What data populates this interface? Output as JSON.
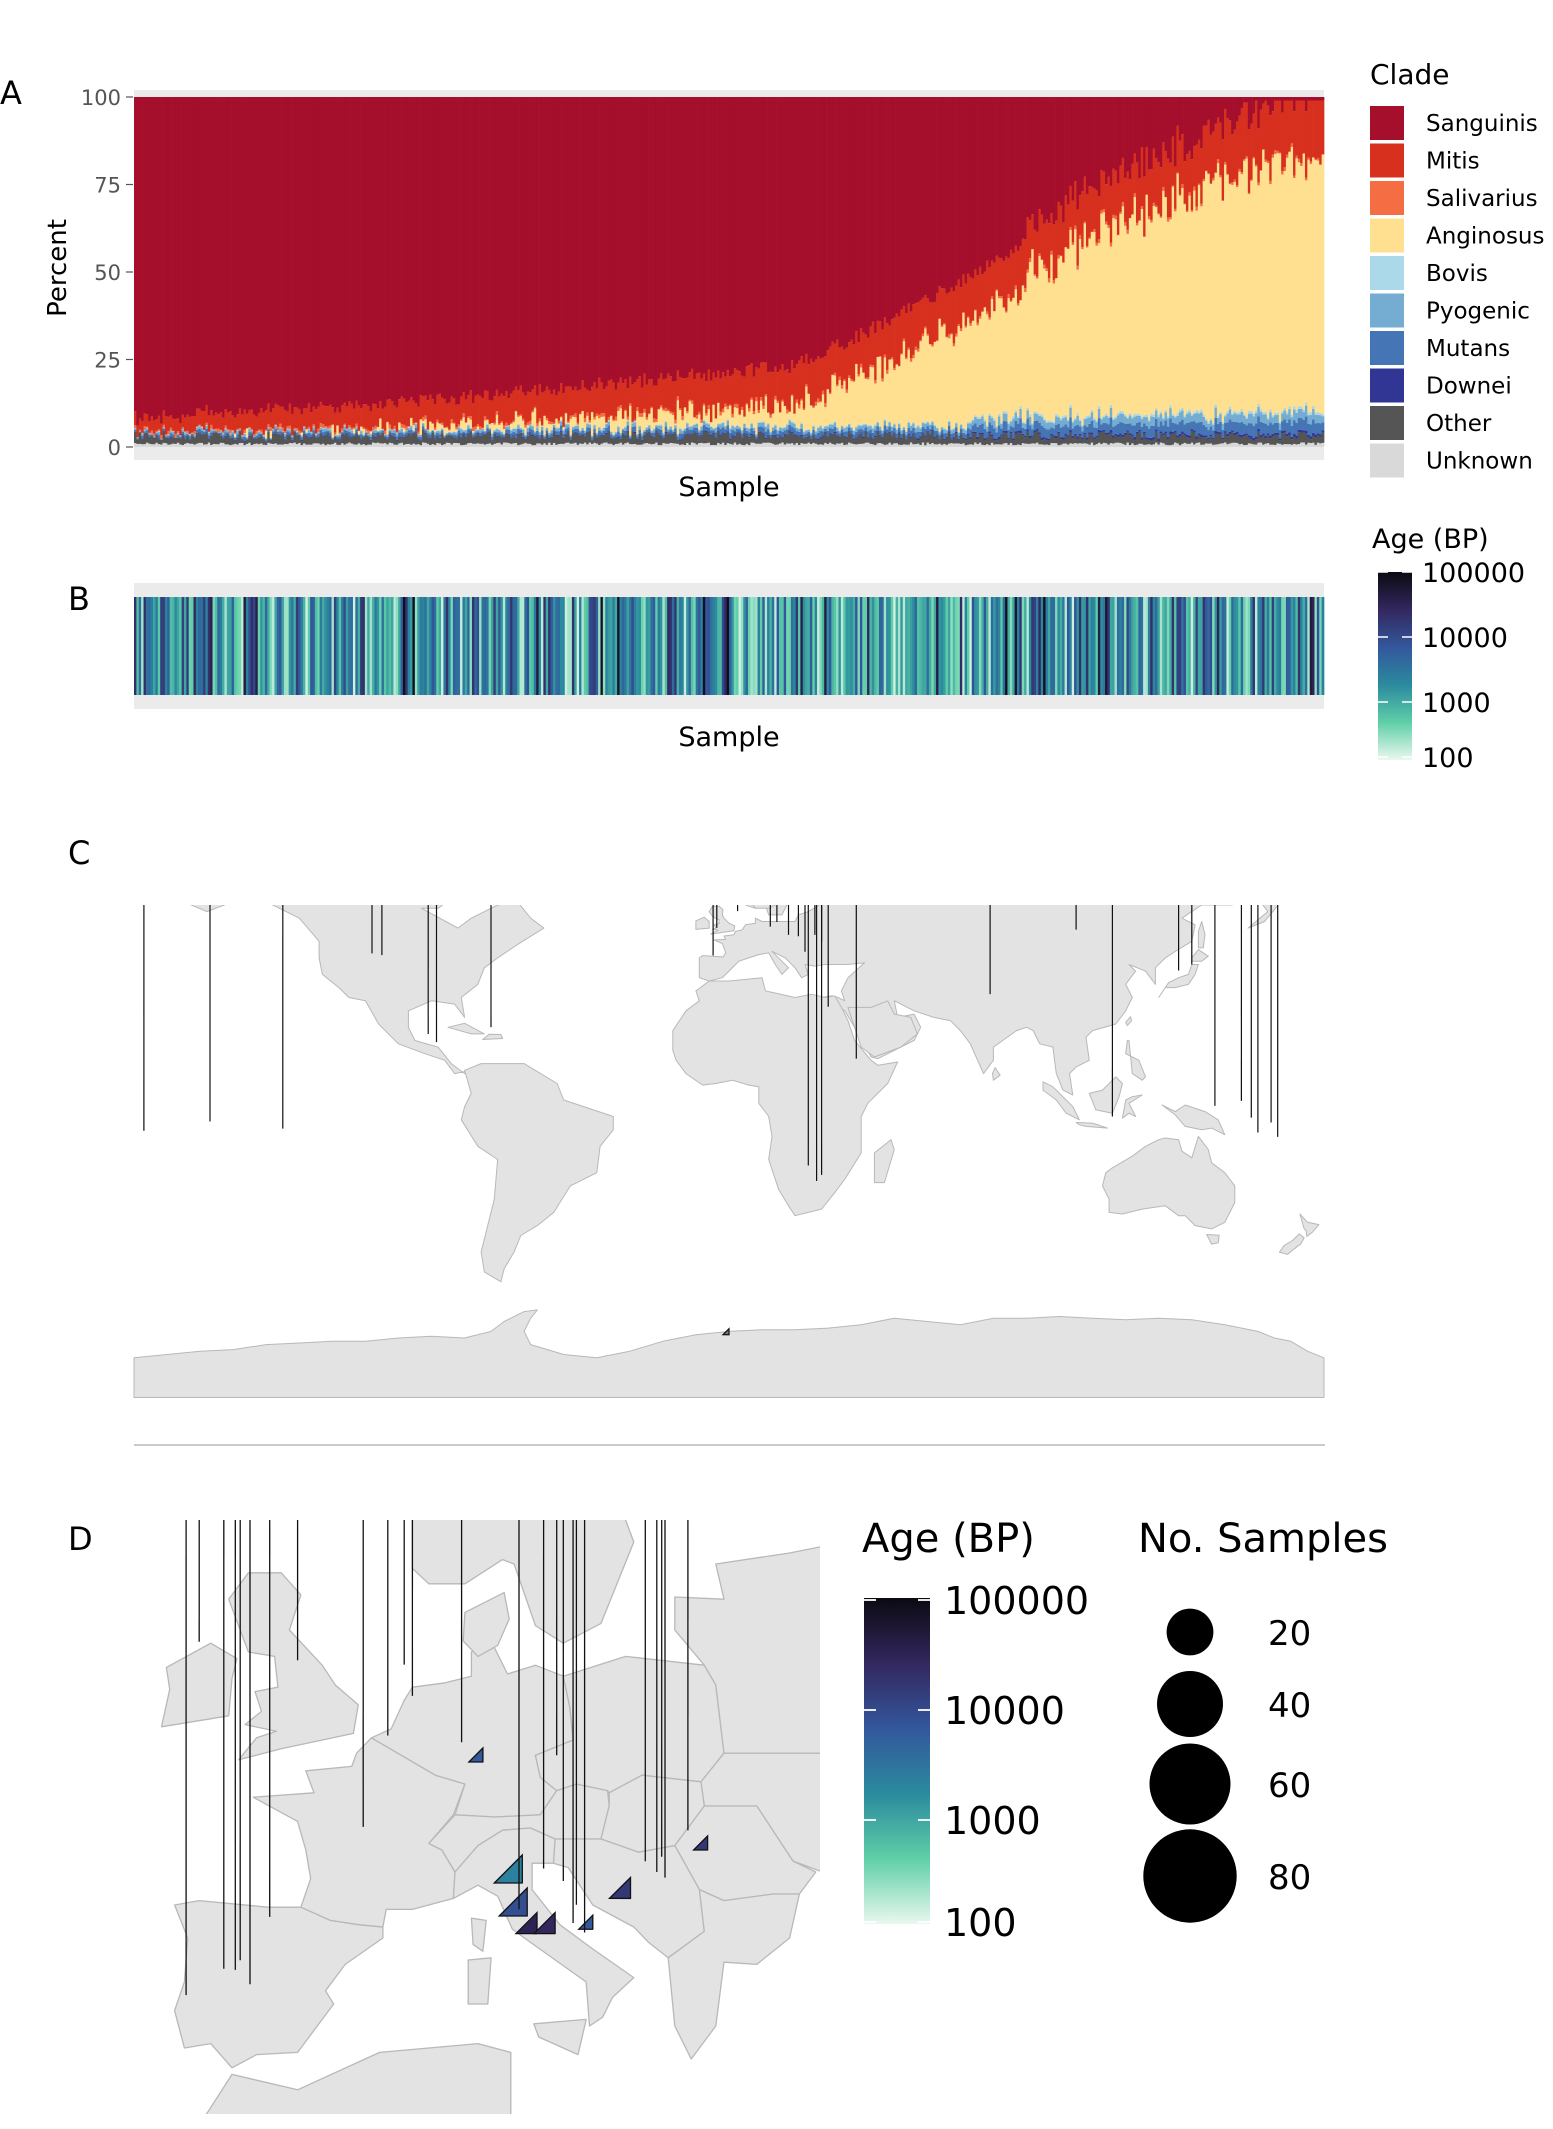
{
  "panel_labels": {
    "a": "A",
    "b": "B",
    "c": "C",
    "d": "D"
  },
  "colors": {
    "panel_bg": "#ebebeb",
    "land": "#e3e3e3",
    "land_border": "#b8b8b8",
    "clades": {
      "Sanguinis": "#a50f2c",
      "Mitis": "#d7301f",
      "Salivarius": "#f46d43",
      "Anginosus": "#fee090",
      "Bovis": "#abd9e9",
      "Pyogenic": "#74add1",
      "Mutans": "#4575b4",
      "Downei": "#313695",
      "Other": "#555555",
      "Unknown": "#d9d9d9"
    },
    "age_gradient": [
      "#e9f8ef",
      "#5fcfa7",
      "#2b8a9e",
      "#33579c",
      "#33275e",
      "#0b0a12"
    ]
  },
  "chart_data": [
    {
      "type": "bar",
      "panel": "A",
      "stacked": true,
      "sample_count": 500,
      "sorted_by": "Sanguinis",
      "xlabel": "Sample",
      "ylabel": "Percent",
      "ylim": [
        0,
        100
      ],
      "yticks": [
        "0",
        "25",
        "50",
        "75",
        "100"
      ],
      "legend": {
        "title": "Clade",
        "position": "right",
        "entries": [
          "Sanguinis",
          "Mitis",
          "Salivarius",
          "Anginosus",
          "Bovis",
          "Pyogenic",
          "Mutans",
          "Downei",
          "Other",
          "Unknown"
        ]
      },
      "series_approx_ranges": {
        "Sanguinis": [
          95,
          2
        ],
        "Mitis": [
          3,
          12
        ],
        "Anginosus": [
          0.5,
          70
        ],
        "Other": [
          1,
          3
        ]
      }
    },
    {
      "type": "heatmap",
      "panel": "B",
      "xlabel": "Sample",
      "legend": {
        "title": "Age (BP)",
        "position": "right",
        "scale": "log",
        "ticks": [
          "100000",
          "10000",
          "1000",
          "100"
        ]
      }
    },
    {
      "type": "scatter",
      "panel": "C",
      "map": "world",
      "marker": "diamond",
      "columns": [
        "lon",
        "lat",
        "age_bp",
        "n_samples"
      ],
      "points": [
        [
          -6.5,
          53.0,
          900,
          60
        ],
        [
          4.5,
          51.8,
          180,
          68
        ],
        [
          2.6,
          48.8,
          7000,
          28
        ],
        [
          -3.7,
          40.4,
          3000,
          55
        ],
        [
          -4.8,
          37.8,
          150,
          14
        ],
        [
          12.5,
          42.5,
          5500,
          40
        ],
        [
          21.0,
          42.5,
          8000,
          20
        ],
        [
          26.0,
          45.5,
          9000,
          8
        ],
        [
          14.5,
          50.0,
          20000,
          6
        ],
        [
          28.0,
          44.0,
          14000,
          6
        ],
        [
          23.0,
          41.0,
          40000,
          6
        ],
        [
          18.0,
          45.0,
          7000,
          10
        ],
        [
          -105.0,
          40.0,
          400,
          6
        ],
        [
          -108.0,
          40.5,
          600,
          6
        ],
        [
          -91.0,
          15.0,
          1500,
          10
        ],
        [
          -88.5,
          14.0,
          3000,
          5
        ],
        [
          -72.0,
          18.5,
          700,
          5
        ],
        [
          30.0,
          26.0,
          7000,
          2
        ],
        [
          38.5,
          9.0,
          4000,
          5
        ],
        [
          105.0,
          48.0,
          5000,
          5
        ],
        [
          79.0,
          28.5,
          1800,
          5
        ],
        [
          136.0,
          35.0,
          400,
          7
        ],
        [
          140.0,
          36.0,
          2000,
          10
        ],
        [
          116.0,
          -8.5,
          4000,
          5
        ],
        [
          147.0,
          -4.0,
          3000,
          2
        ],
        [
          155.0,
          -8.0,
          700,
          24
        ],
        [
          158.0,
          -11.0,
          2600,
          13
        ],
        [
          164.0,
          -12.0,
          1500,
          11
        ],
        [
          160.0,
          -14.0,
          3000,
          7
        ],
        [
          166.0,
          -15.0,
          2000,
          6
        ],
        [
          -177.0,
          -14.0,
          2000,
          9
        ],
        [
          -157.0,
          -10.0,
          300,
          5
        ],
        [
          -135.0,
          -17.0,
          500,
          28
        ],
        [
          24.0,
          -24.0,
          300,
          7
        ],
        [
          28.0,
          -26.5,
          6000,
          6
        ],
        [
          26.5,
          -28.0,
          3000,
          5
        ],
        [
          0.0,
          -71.0,
          1000,
          1
        ]
      ]
    },
    {
      "type": "scatter",
      "panel": "D",
      "map": "europe",
      "marker": "diamond",
      "columns": [
        "lon",
        "lat",
        "age_bp",
        "n_samples"
      ],
      "points": [
        [
          -8.0,
          53.0,
          900,
          60
        ],
        [
          -2.0,
          52.0,
          150,
          68
        ],
        [
          4.5,
          51.8,
          200,
          68
        ],
        [
          5.0,
          52.0,
          300,
          10
        ],
        [
          3.5,
          50.2,
          30000,
          10
        ],
        [
          8.0,
          50.0,
          1500,
          8
        ],
        [
          9.3,
          50.0,
          6000,
          4
        ],
        [
          13.8,
          49.3,
          25000,
          10
        ],
        [
          2.0,
          46.5,
          8000,
          3
        ],
        [
          21.8,
          46.0,
          8000,
          8
        ],
        [
          23.0,
          46.0,
          15000,
          4
        ],
        [
          -3.7,
          40.3,
          3000,
          70
        ],
        [
          -5.5,
          39.8,
          400,
          14
        ],
        [
          -6.5,
          39.5,
          200,
          12
        ],
        [
          -5.8,
          39.2,
          10000,
          18
        ],
        [
          -4.9,
          39.0,
          50000,
          8
        ],
        [
          -8.8,
          38.3,
          300,
          12
        ],
        [
          11.7,
          44.5,
          2000,
          16
        ],
        [
          13.0,
          43.6,
          6000,
          24
        ],
        [
          12.0,
          43.0,
          8000,
          16
        ],
        [
          14.2,
          43.4,
          2500,
          14
        ],
        [
          11.5,
          42.3,
          15000,
          10
        ],
        [
          12.6,
          42.2,
          30000,
          9
        ],
        [
          13.7,
          42.2,
          25000,
          9
        ],
        [
          15.0,
          42.8,
          3000,
          5
        ],
        [
          16.0,
          42.4,
          6000,
          4
        ],
        [
          14.8,
          41.9,
          15000,
          6
        ],
        [
          15.5,
          41.7,
          3000,
          3
        ],
        [
          19.2,
          44.3,
          10000,
          14
        ],
        [
          20.2,
          44.5,
          8000,
          14
        ],
        [
          20.4,
          43.9,
          60000,
          7
        ],
        [
          18.3,
          43.8,
          15000,
          9
        ],
        [
          19.9,
          44.1,
          12000,
          8
        ]
      ],
      "legends": {
        "age": {
          "title": "Age (BP)",
          "scale": "log",
          "ticks": [
            "100000",
            "10000",
            "1000",
            "100"
          ]
        },
        "size": {
          "title": "No. Samples",
          "ticks": [
            "20",
            "40",
            "60",
            "80"
          ]
        }
      }
    }
  ]
}
